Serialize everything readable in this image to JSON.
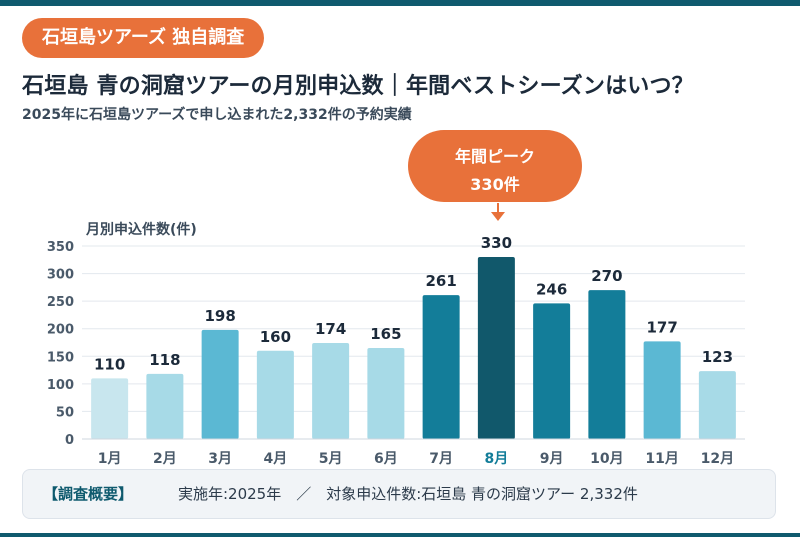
{
  "badge": "石垣島ツアーズ 独自調査",
  "title": "石垣島 青の洞窟ツアーの月別申込数｜年間ベストシーズンはいつ？",
  "subtitle": "2025年に石垣島ツアーズで申し込まれた2,332件の予約実績",
  "callout": {
    "line1": "年間ピーク",
    "line2": "330件"
  },
  "chart_data": {
    "type": "bar",
    "ylabel": "月別申込件数(件)",
    "xlabel": "",
    "categories": [
      "1月",
      "2月",
      "3月",
      "4月",
      "5月",
      "6月",
      "7月",
      "8月",
      "9月",
      "10月",
      "11月",
      "12月"
    ],
    "values": [
      110,
      118,
      198,
      160,
      174,
      165,
      261,
      330,
      246,
      270,
      177,
      123
    ],
    "ylim": [
      0,
      350
    ],
    "yticks": [
      0,
      50,
      100,
      150,
      200,
      250,
      300,
      350
    ],
    "grid": true,
    "highlight_category": "8月",
    "colors": {
      "lightest": "#c8e6ee",
      "light": "#a7dae7",
      "medium": "#5bb8d3",
      "dark": "#137d99",
      "peak": "#11586b",
      "highlight_label": "#137d99",
      "label": "#1c2a3a"
    },
    "bar_colors": [
      "lightest",
      "light",
      "medium",
      "light",
      "light",
      "light",
      "dark",
      "peak",
      "dark",
      "dark",
      "medium",
      "light"
    ]
  },
  "footer": {
    "heading": "【調査概要】",
    "text": "実施年:2025年　／　対象申込件数:石垣島 青の洞窟ツアー 2,332件"
  }
}
